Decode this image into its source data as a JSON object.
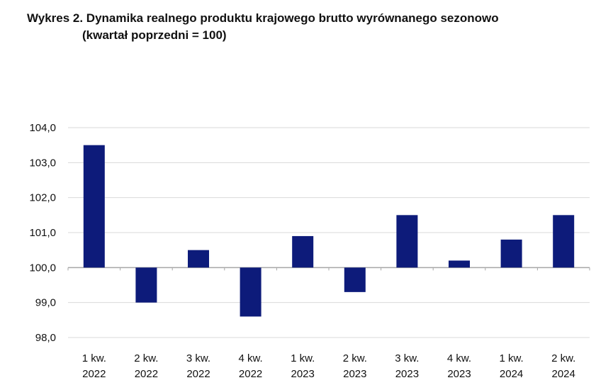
{
  "chart_data": {
    "type": "bar",
    "title": "Wykres 2. Dynamika realnego produktu krajowego brutto wyrównanego sezonowo",
    "subtitle": "(kwartał poprzedni = 100)",
    "categories": [
      [
        "1 kw.",
        "2022"
      ],
      [
        "2 kw.",
        "2022"
      ],
      [
        "3 kw.",
        "2022"
      ],
      [
        "4 kw.",
        "2022"
      ],
      [
        "1 kw.",
        "2023"
      ],
      [
        "2 kw.",
        "2023"
      ],
      [
        "3 kw.",
        "2023"
      ],
      [
        "4 kw.",
        "2023"
      ],
      [
        "1 kw.",
        "2024"
      ],
      [
        "2 kw.",
        "2024"
      ]
    ],
    "values": [
      103.5,
      99.0,
      100.5,
      98.6,
      100.9,
      99.3,
      101.5,
      100.2,
      100.8,
      101.5
    ],
    "baseline": 100.0,
    "ylim": [
      98.0,
      104.0
    ],
    "yticks": [
      "98,0",
      "99,0",
      "100,0",
      "101,0",
      "102,0",
      "103,0",
      "104,0"
    ],
    "grid": true,
    "bar_color": "#0d1b7a",
    "grid_color": "#d9d9d9",
    "axis_color": "#a6a6a6"
  }
}
